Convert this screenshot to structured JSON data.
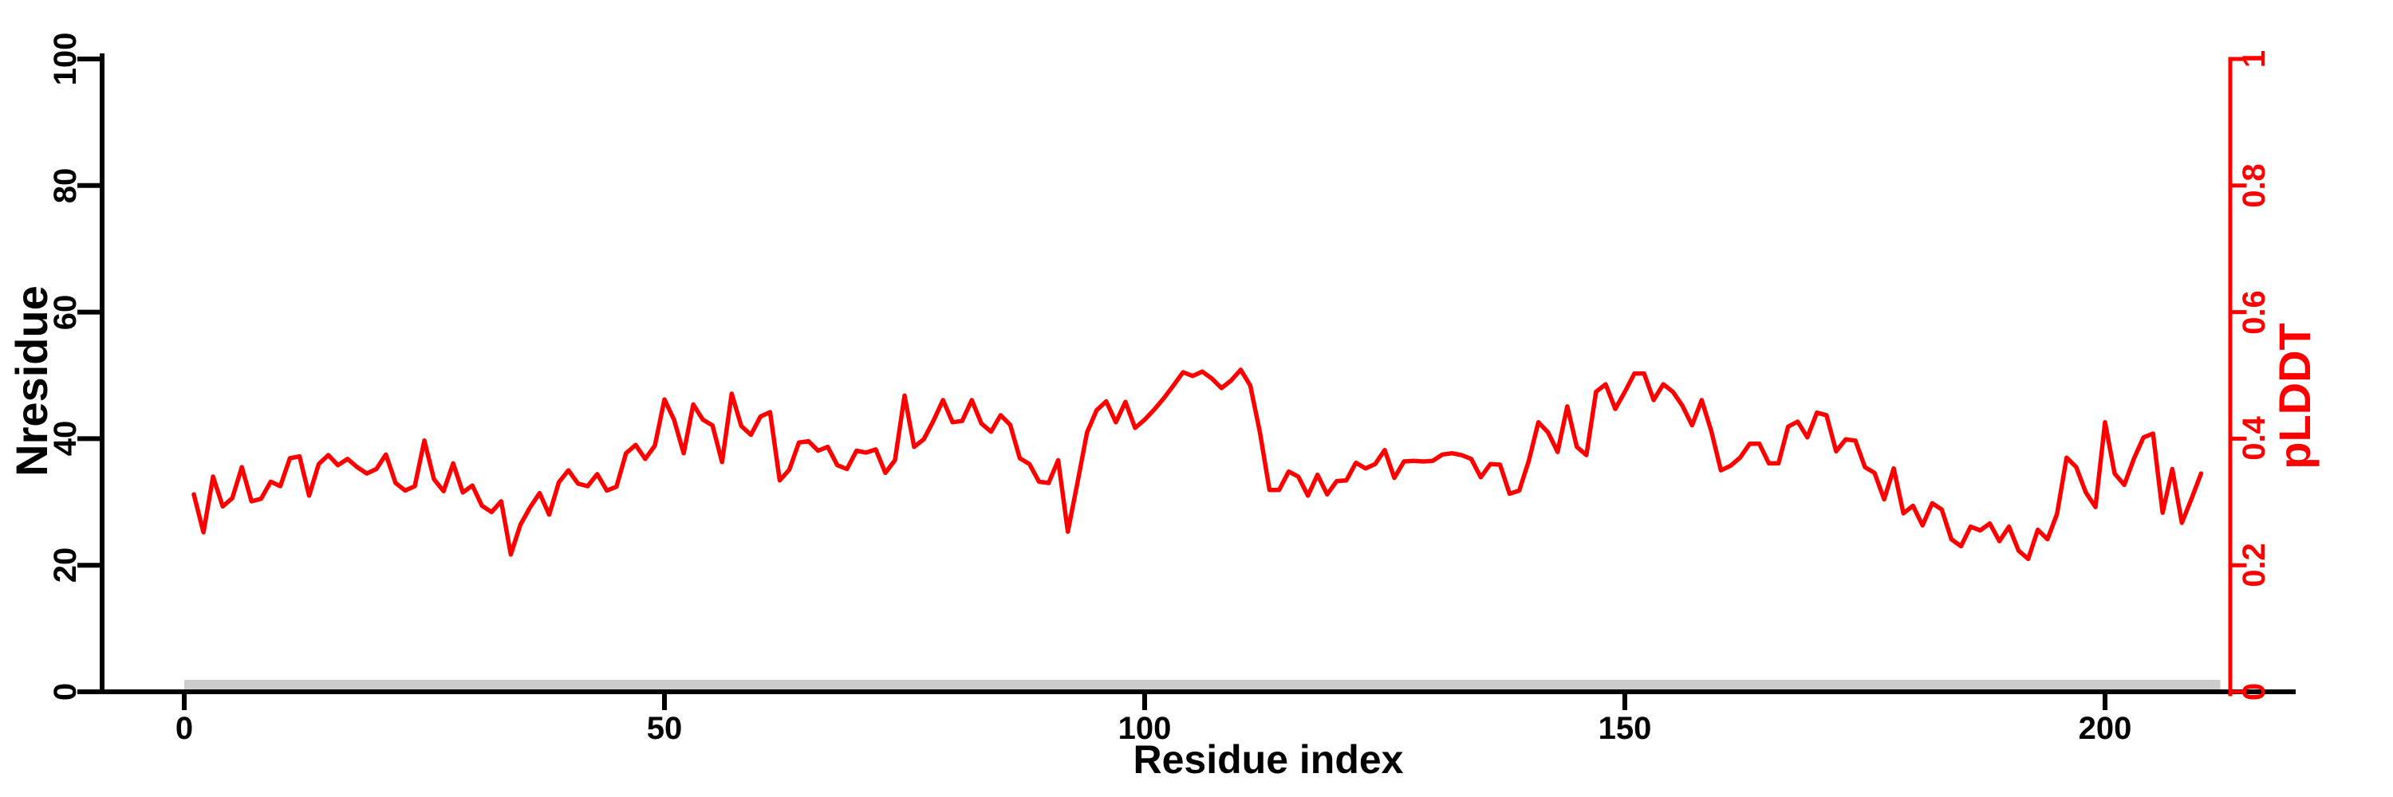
{
  "chart_data": {
    "type": "line",
    "title": "",
    "background": "#ffffff",
    "grid": false,
    "legend": null,
    "x_axis": {
      "label": "Residue index",
      "tick_labels": [
        "0",
        "50",
        "100",
        "150",
        "200"
      ],
      "tick_values": [
        0,
        50,
        100,
        150,
        200
      ],
      "range_shown": [
        -8.5,
        219.5
      ],
      "color": "#000000"
    },
    "left_axis": {
      "label": "Nresidue",
      "tick_labels": [
        "0",
        "20",
        "40",
        "60",
        "80",
        "100"
      ],
      "tick_values": [
        0,
        20,
        40,
        60,
        80,
        100
      ],
      "range": [
        0,
        100
      ],
      "color": "#000000"
    },
    "right_axis": {
      "label": "pLDDT",
      "tick_labels": [
        "0",
        "0.2",
        "0.4",
        "0.6",
        "0.8",
        "1"
      ],
      "tick_values": [
        0,
        0.2,
        0.4,
        0.6,
        0.8,
        1
      ],
      "range": [
        0,
        1
      ],
      "color": "#ff0000"
    },
    "baseline_bar": {
      "description": "gray horizontal segment along baseline",
      "x_start": 0,
      "x_end": 212,
      "color": "#cccccc"
    },
    "series": [
      {
        "name": "pLDDT",
        "axis": "right",
        "color": "#ff0000",
        "x_start": 1,
        "x_step": 1,
        "y": [
          0.312,
          0.252,
          0.34,
          0.293,
          0.306,
          0.355,
          0.301,
          0.305,
          0.332,
          0.325,
          0.369,
          0.372,
          0.31,
          0.36,
          0.374,
          0.358,
          0.368,
          0.355,
          0.345,
          0.352,
          0.375,
          0.33,
          0.318,
          0.325,
          0.397,
          0.336,
          0.317,
          0.361,
          0.315,
          0.326,
          0.294,
          0.284,
          0.301,
          0.217,
          0.264,
          0.291,
          0.314,
          0.28,
          0.331,
          0.35,
          0.329,
          0.325,
          0.344,
          0.318,
          0.324,
          0.377,
          0.39,
          0.368,
          0.389,
          0.462,
          0.43,
          0.377,
          0.454,
          0.43,
          0.421,
          0.363,
          0.471,
          0.42,
          0.406,
          0.435,
          0.442,
          0.334,
          0.351,
          0.394,
          0.396,
          0.381,
          0.387,
          0.358,
          0.352,
          0.381,
          0.378,
          0.383,
          0.346,
          0.366,
          0.468,
          0.387,
          0.399,
          0.428,
          0.461,
          0.426,
          0.428,
          0.461,
          0.424,
          0.411,
          0.437,
          0.422,
          0.369,
          0.36,
          0.332,
          0.33,
          0.366,
          0.253,
          0.33,
          0.41,
          0.445,
          0.459,
          0.426,
          0.458,
          0.417,
          0.43,
          0.446,
          0.464,
          0.484,
          0.505,
          0.499,
          0.506,
          0.495,
          0.48,
          0.492,
          0.509,
          0.484,
          0.41,
          0.319,
          0.319,
          0.348,
          0.34,
          0.31,
          0.343,
          0.312,
          0.333,
          0.334,
          0.362,
          0.353,
          0.36,
          0.382,
          0.338,
          0.364,
          0.365,
          0.364,
          0.365,
          0.375,
          0.377,
          0.374,
          0.368,
          0.339,
          0.36,
          0.359,
          0.313,
          0.318,
          0.365,
          0.426,
          0.41,
          0.379,
          0.451,
          0.387,
          0.374,
          0.474,
          0.486,
          0.447,
          0.474,
          0.503,
          0.503,
          0.461,
          0.486,
          0.474,
          0.452,
          0.421,
          0.461,
          0.412,
          0.35,
          0.357,
          0.37,
          0.392,
          0.392,
          0.361,
          0.361,
          0.419,
          0.427,
          0.402,
          0.441,
          0.437,
          0.38,
          0.399,
          0.397,
          0.355,
          0.346,
          0.304,
          0.353,
          0.282,
          0.294,
          0.263,
          0.298,
          0.288,
          0.241,
          0.23,
          0.261,
          0.255,
          0.266,
          0.238,
          0.261,
          0.223,
          0.21,
          0.256,
          0.241,
          0.281,
          0.37,
          0.355,
          0.315,
          0.292,
          0.426,
          0.345,
          0.327,
          0.368,
          0.402,
          0.408,
          0.283,
          0.352,
          0.267,
          0.305,
          0.345
        ]
      }
    ]
  }
}
